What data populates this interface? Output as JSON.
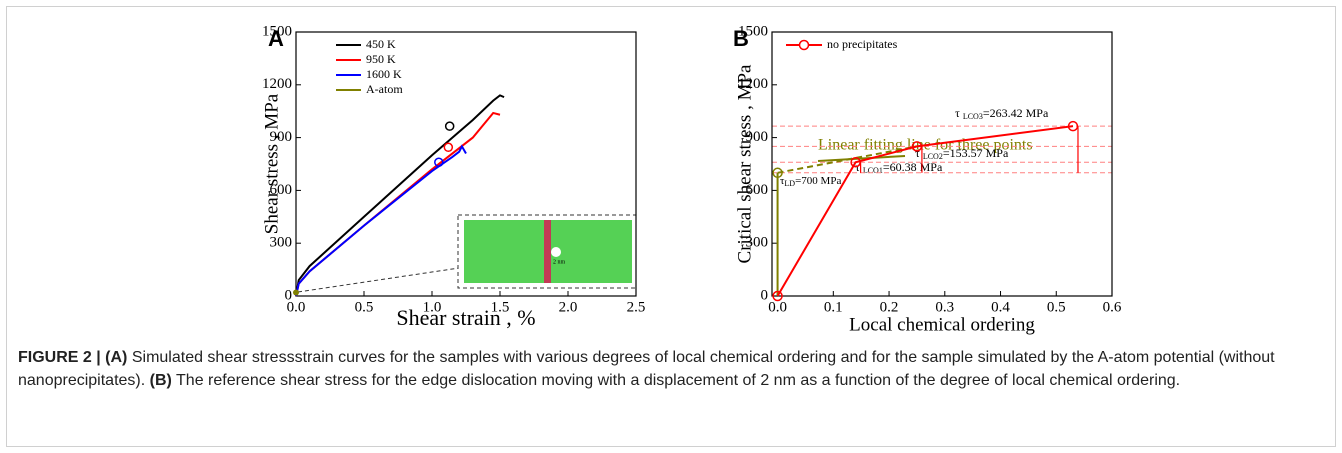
{
  "chart_data": [
    {
      "type": "line",
      "panel_label": "A",
      "x_label": "Shear strain , %",
      "y_label": "Shear stress , MPa",
      "xlim": [
        0,
        2.5
      ],
      "ylim": [
        0,
        1500
      ],
      "xticks": [
        {
          "value": 0,
          "label": "0.0"
        },
        0.5,
        {
          "value": 1,
          "label": "1.0"
        },
        1.5,
        {
          "value": 2,
          "label": "2.0"
        },
        2.5
      ],
      "yticks": [
        0,
        300,
        600,
        900,
        1200,
        1500
      ],
      "legend": "upper left",
      "inset_label": "2 nm",
      "series": [
        {
          "name": "450 K",
          "color": "#000000",
          "x": [
            0,
            0.02,
            0.1,
            0.5,
            1.0,
            1.3,
            1.45,
            1.5,
            1.53
          ],
          "values": [
            0,
            90,
            170,
            450,
            800,
            1000,
            1110,
            1140,
            1130
          ],
          "marker_point": {
            "x": 1.13,
            "y": 965
          }
        },
        {
          "name": "950 K",
          "color": "#ff0000",
          "x": [
            0,
            0.02,
            0.1,
            0.5,
            1.0,
            1.3,
            1.45,
            1.5
          ],
          "values": [
            0,
            70,
            140,
            400,
            720,
            900,
            1040,
            1030
          ],
          "marker_point": {
            "x": 1.12,
            "y": 845
          }
        },
        {
          "name": "1600 K",
          "color": "#0000ff",
          "x": [
            0,
            0.02,
            0.1,
            0.5,
            1.0,
            1.15,
            1.2,
            1.22,
            1.25
          ],
          "values": [
            0,
            70,
            140,
            400,
            710,
            790,
            820,
            850,
            810
          ],
          "marker_point": {
            "x": 1.05,
            "y": 760
          }
        },
        {
          "name": "A-atom",
          "color": "#808000",
          "x": [
            0
          ],
          "values": [
            20
          ]
        }
      ]
    },
    {
      "type": "line",
      "panel_label": "B",
      "x_label": "Local chemical ordering",
      "y_label": "Critical shear stress , MPa",
      "xlim": [
        -0.01,
        0.6
      ],
      "ylim": [
        0,
        1500
      ],
      "xticks": [
        {
          "value": 0,
          "label": "0.0"
        },
        0.1,
        0.2,
        0.3,
        0.4,
        0.5,
        0.6
      ],
      "yticks": [
        0,
        300,
        600,
        900,
        1200,
        1500
      ],
      "legend": "upper left",
      "series": [
        {
          "name": "no precipitates",
          "color": "#ff0000",
          "x": [
            0,
            0.14,
            0.25,
            0.53
          ],
          "values": [
            0,
            760,
            850,
            965
          ]
        }
      ],
      "fit_line": {
        "color": "#808000",
        "x": [
          0,
          0.25
        ],
        "values": [
          700,
          850
        ]
      },
      "reference_lines": [
        700,
        760,
        850,
        965
      ],
      "annotations": {
        "fit": "Linear fitting line for three points",
        "tau_ld": {
          "symbol": "τ",
          "sub": "LD",
          "text": "=700 MPa"
        },
        "tau_lco1": {
          "symbol": "τ ",
          "sub": "LCO1",
          "text": "=60.38 MPa"
        },
        "tau_lco2": {
          "symbol": "τ ",
          "sub": "LCO2",
          "text": "=153.57 MPa"
        },
        "tau_lco3": {
          "symbol": "τ ",
          "sub": "LCO3",
          "text": "=263.42 MPa"
        }
      }
    }
  ],
  "caption": {
    "label": "FIGURE 2 |",
    "a": "(A)",
    "a_text": " Simulated shear stressstrain curves for the samples with various degrees of local chemical ordering and for the sample simulated by the A-atom potential (without nanoprecipitates). ",
    "b": "(B)",
    "b_text": " The reference shear stress for the edge dislocation moving with a displacement of 2 nm as a function of the degree of local chemical ordering."
  }
}
